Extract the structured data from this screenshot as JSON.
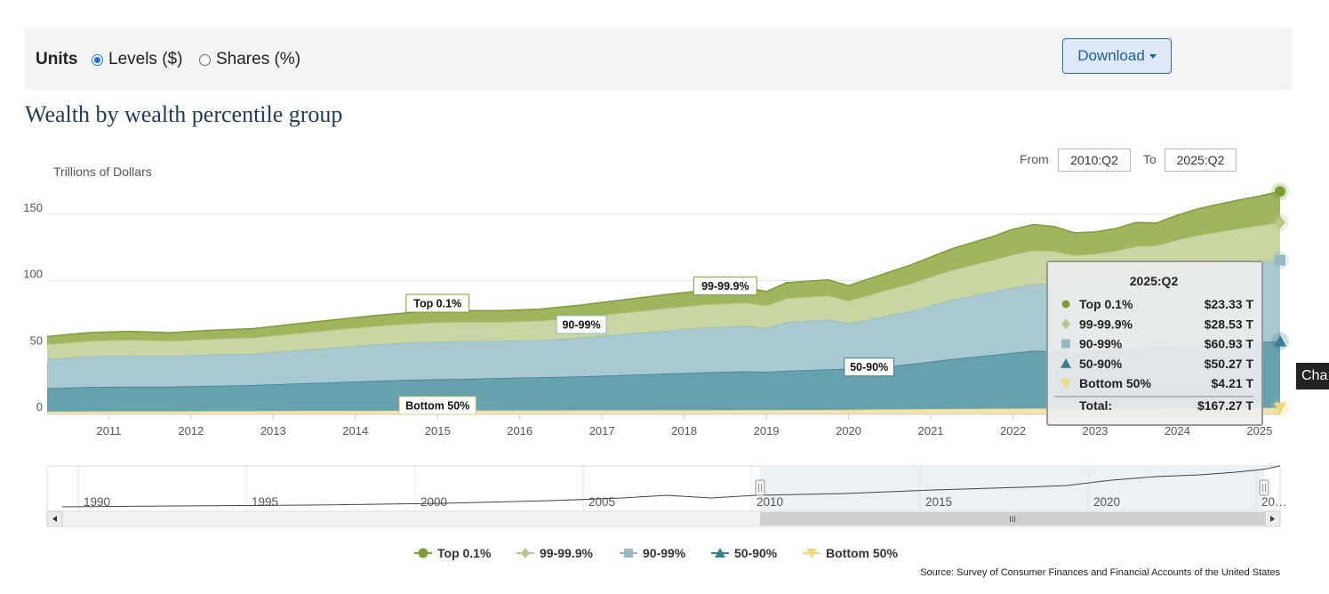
{
  "controls": {
    "units_label": "Units",
    "levels_label": "Levels ($)",
    "shares_label": "Shares (%)",
    "selected": "levels",
    "download_label": "Download"
  },
  "title": "Wealth by wealth percentile group",
  "range": {
    "from_label": "From",
    "from_value": "2010:Q2",
    "to_label": "To",
    "to_value": "2025:Q2"
  },
  "side_tab_label": "Cha",
  "source": "Source: Survey of Consumer Finances and Financial Accounts of the United States",
  "colors": {
    "top01": "#7e9c35",
    "top01_fill": "#9fb65e",
    "p999": "#b7c78c",
    "p999_fill": "#c9d6a3",
    "p9099": "#96b9c4",
    "p9099_fill": "#a9c9d1",
    "p5090": "#3d7f92",
    "p5090_fill": "#66a1ae",
    "bottom50": "#f0d77f",
    "bottom50_fill": "#f5e3a6"
  },
  "chart_data": {
    "type": "area",
    "stacked": true,
    "ylabel": "Trillions of Dollars",
    "ylim": [
      0,
      165
    ],
    "xlim": [
      2010.25,
      2025.25
    ],
    "yticks": [
      0,
      50,
      100,
      150
    ],
    "xticks": [
      2011,
      2012,
      2013,
      2014,
      2015,
      2016,
      2017,
      2018,
      2019,
      2020,
      2021,
      2022,
      2023,
      2024,
      2025
    ],
    "x": [
      2010.25,
      2010.75,
      2011.25,
      2011.75,
      2012.25,
      2012.75,
      2013.25,
      2013.75,
      2014.25,
      2014.75,
      2015.25,
      2015.75,
      2016.25,
      2016.75,
      2017.25,
      2017.75,
      2018.25,
      2018.75,
      2019.0,
      2019.25,
      2019.75,
      2020.0,
      2020.25,
      2020.75,
      2021.25,
      2021.75,
      2022.0,
      2022.25,
      2022.5,
      2022.75,
      2023.0,
      2023.25,
      2023.5,
      2023.75,
      2024.0,
      2024.25,
      2024.5,
      2024.75,
      2025.0,
      2025.25
    ],
    "series": [
      {
        "name": "Bottom 50%",
        "values": [
          1.5,
          1.6,
          1.7,
          1.7,
          1.8,
          1.9,
          2.0,
          2.0,
          2.1,
          2.2,
          2.2,
          2.3,
          2.3,
          2.4,
          2.4,
          2.5,
          2.5,
          2.6,
          2.6,
          2.7,
          2.7,
          2.8,
          3.0,
          3.2,
          3.4,
          3.6,
          3.7,
          3.8,
          3.8,
          3.7,
          3.8,
          3.8,
          3.9,
          3.9,
          4.0,
          4.0,
          4.1,
          4.1,
          4.2,
          4.21
        ]
      },
      {
        "name": "50-90%",
        "values": [
          17.5,
          18.3,
          18.5,
          18.6,
          19.0,
          19.5,
          20.5,
          21.5,
          22.5,
          23.3,
          23.8,
          24.5,
          25.0,
          25.5,
          26.5,
          27.5,
          28.5,
          29.2,
          28.8,
          29.5,
          30.5,
          31.0,
          31.2,
          34.0,
          37.5,
          40.5,
          42.0,
          43.5,
          43.0,
          42.5,
          43.5,
          44.3,
          45.0,
          45.8,
          46.5,
          47.3,
          48.0,
          48.7,
          49.5,
          50.27
        ]
      },
      {
        "name": "90-99%",
        "values": [
          22.0,
          23.2,
          23.5,
          23.0,
          23.5,
          23.6,
          25.0,
          26.2,
          27.5,
          28.3,
          28.5,
          27.8,
          28.0,
          29.2,
          30.8,
          32.2,
          33.8,
          34.2,
          33.0,
          36.5,
          37.5,
          34.0,
          36.5,
          40.0,
          44.5,
          47.5,
          49.0,
          50.0,
          51.5,
          52.8,
          53.5,
          54.3,
          55.0,
          55.8,
          56.8,
          57.8,
          58.7,
          59.5,
          60.2,
          60.93
        ]
      },
      {
        "name": "99-99.9%",
        "values": [
          11.0,
          11.5,
          11.8,
          11.3,
          11.8,
          12.1,
          12.6,
          13.3,
          13.7,
          14.2,
          14.4,
          14.2,
          14.5,
          15.3,
          16.0,
          16.8,
          17.2,
          17.4,
          16.8,
          18.0,
          18.0,
          17.0,
          18.5,
          20.5,
          22.5,
          23.8,
          25.0,
          25.5,
          24.0,
          20.0,
          19.5,
          20.0,
          22.0,
          21.0,
          23.5,
          25.0,
          26.0,
          27.0,
          27.5,
          28.53
        ]
      },
      {
        "name": "Top 0.1%",
        "values": [
          6.0,
          6.3,
          6.4,
          6.3,
          6.6,
          6.8,
          7.2,
          7.6,
          8.0,
          8.4,
          8.6,
          8.6,
          8.8,
          9.3,
          9.8,
          10.3,
          10.7,
          11.0,
          10.7,
          11.8,
          12.0,
          11.5,
          12.3,
          14.0,
          16.0,
          17.8,
          19.0,
          19.5,
          18.5,
          17.0,
          16.5,
          16.9,
          18.0,
          17.0,
          18.5,
          20.0,
          20.8,
          21.5,
          22.3,
          23.33
        ]
      }
    ],
    "legend": [
      "Top 0.1%",
      "99-99.9%",
      "90-99%",
      "50-90%",
      "Bottom 50%"
    ],
    "legend_position": "bottom",
    "annotations": [
      {
        "text": "Top 0.1%",
        "x": 2015.0,
        "y": 83
      },
      {
        "text": "99-99.9%",
        "x": 2018.5,
        "y": 96
      },
      {
        "text": "90-99%",
        "x": 2016.75,
        "y": 67
      },
      {
        "text": "50-90%",
        "x": 2020.25,
        "y": 35
      },
      {
        "text": "Bottom 50%",
        "x": 2015.0,
        "y": 6
      }
    ],
    "tooltip": {
      "title": "2025:Q2",
      "rows": [
        {
          "name": "Top 0.1%",
          "value": "$23.33 T"
        },
        {
          "name": "99-99.9%",
          "value": "$28.53 T"
        },
        {
          "name": "90-99%",
          "value": "$60.93 T"
        },
        {
          "name": "50-90%",
          "value": "$50.27 T"
        },
        {
          "name": "Bottom 50%",
          "value": "$4.21 T"
        }
      ],
      "total_label": "Total:",
      "total_value": "$167.27 T"
    },
    "navigator": {
      "xticks": [
        "1990",
        "1995",
        "2000",
        "2005",
        "2010",
        "2015",
        "2020",
        "20…"
      ],
      "selected_range": [
        "2010:Q2",
        "2025:Q2"
      ]
    },
    "grid": true
  }
}
